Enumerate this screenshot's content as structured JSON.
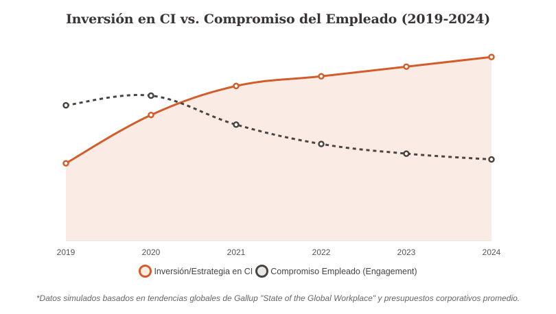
{
  "title": "Inversión en CI vs. Compromiso del Empleado (2019-2024)",
  "footnote": "*Datos simulados basados en tendencias globales de Gallup \"State of the Global Workplace\" y presupuestos corporativos promedio.",
  "colors": {
    "investment": "#d35d2a",
    "investment_fill": "#faebe5",
    "engagement": "#4a4440",
    "engagement_fill": "#e8e8e8",
    "axis": "#e0e0e0"
  },
  "legend": [
    {
      "label": "Inversión/Estrategia en CI"
    },
    {
      "label": "Compromiso Empleado (Engagement)"
    }
  ],
  "chart_data": {
    "type": "line",
    "title": "Inversión en CI vs. Compromiso del Empleado (2019-2024)",
    "xlabel": "",
    "ylabel": "",
    "x": [
      "2019",
      "2020",
      "2021",
      "2022",
      "2023",
      "2024"
    ],
    "ylim": [
      0,
      100
    ],
    "y_axis_visible": false,
    "grid": false,
    "legend_position": "bottom",
    "series": [
      {
        "name": "Inversión/Estrategia en CI",
        "values": [
          40,
          65,
          80,
          85,
          90,
          95
        ],
        "style": "solid",
        "fill": true
      },
      {
        "name": "Compromiso Empleado (Engagement)",
        "values": [
          70,
          75,
          60,
          50,
          45,
          42
        ],
        "style": "dotted",
        "fill": false
      }
    ]
  }
}
